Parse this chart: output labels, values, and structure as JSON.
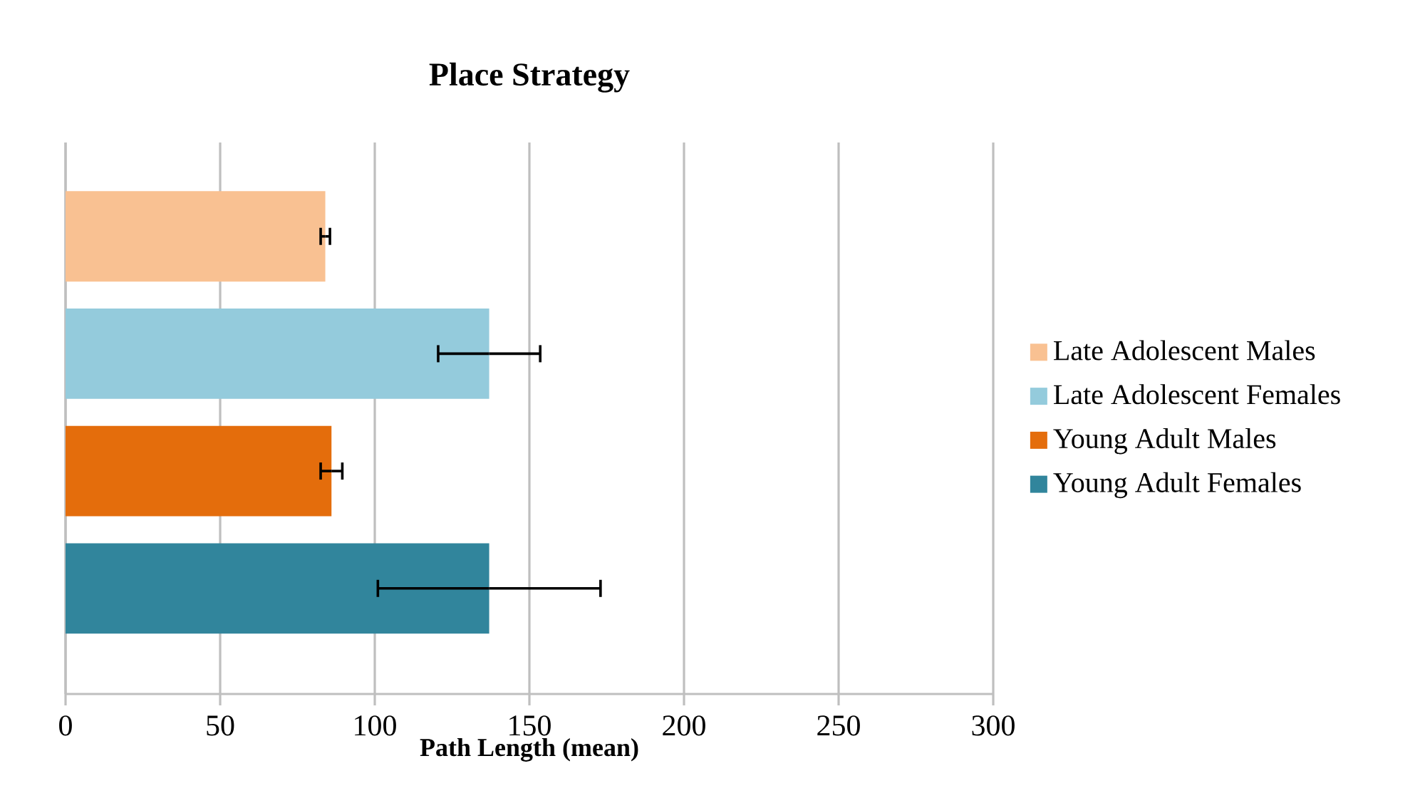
{
  "chart_data": {
    "type": "bar",
    "orientation": "horizontal",
    "title": "Place Strategy",
    "xlabel": "Path Length (mean)",
    "categories": [
      null,
      null,
      null,
      null
    ],
    "series": [
      {
        "name": "Late Adolescent Males",
        "color": "#f9c192",
        "values": [
          84,
          null,
          null,
          null
        ],
        "errors": [
          1.5,
          null,
          null,
          null
        ]
      },
      {
        "name": "Late Adolescent Females",
        "color": "#94cbdc",
        "values": [
          null,
          137,
          null,
          null
        ],
        "errors": [
          null,
          16.5,
          null,
          null
        ]
      },
      {
        "name": "Young Adult Males",
        "color": "#e46d0c",
        "values": [
          null,
          null,
          86,
          null
        ],
        "errors": [
          null,
          null,
          3.5,
          null
        ]
      },
      {
        "name": "Young Adult Females",
        "color": "#31859c",
        "values": [
          null,
          null,
          null,
          137
        ],
        "errors": [
          null,
          null,
          null,
          36
        ]
      }
    ],
    "xlim": [
      0,
      300
    ],
    "xticks": [
      0,
      50,
      100,
      150,
      200,
      250,
      300
    ],
    "grid": "x",
    "legend": "right"
  }
}
